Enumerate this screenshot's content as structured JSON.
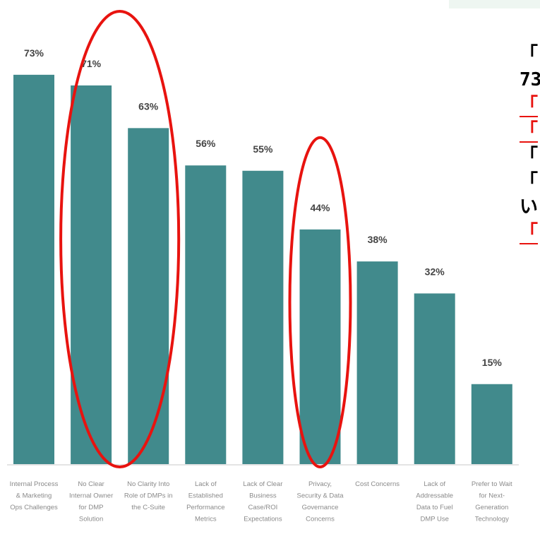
{
  "chart_data": {
    "type": "bar",
    "categories": [
      [
        "Internal Process",
        "& Marketing",
        "Ops Challenges"
      ],
      [
        "No Clear",
        "Internal Owner",
        "for DMP",
        "Solution"
      ],
      [
        "No Clarity Into",
        "Role of DMPs in",
        "the C-Suite"
      ],
      [
        "Lack of",
        "Established",
        "Performance",
        "Metrics"
      ],
      [
        "Lack of Clear",
        "Business",
        "Case/ROI",
        "Expectations"
      ],
      [
        "Privacy,",
        "Security & Data",
        "Governance",
        "Concerns"
      ],
      [
        "Cost Concerns"
      ],
      [
        "Lack of",
        "Addressable",
        "Data to Fuel",
        "DMP Use"
      ],
      [
        "Prefer to Wait",
        "for Next-",
        "Generation",
        "Technology"
      ]
    ],
    "values": [
      73,
      71,
      63,
      56,
      55,
      44,
      38,
      32,
      15
    ],
    "value_labels": [
      "73%",
      "71%",
      "63%",
      "56%",
      "55%",
      "44%",
      "38%",
      "32%",
      "15%"
    ],
    "ylim": [
      0,
      80
    ],
    "bar_color": "#418a8c",
    "grid": false,
    "highlight_color": "#e8130f",
    "highlighted_groups": [
      [
        1,
        2
      ],
      [
        5
      ]
    ]
  },
  "side_text": {
    "lines": [
      {
        "text": "「",
        "color": "#000000",
        "underline": false
      },
      {
        "text": "73",
        "color": "#000000",
        "underline": false
      },
      {
        "text": "「",
        "color": "#e8130f",
        "underline": true
      },
      {
        "text": "「",
        "color": "#e8130f",
        "underline": true
      },
      {
        "text": "「",
        "color": "#000000",
        "underline": false
      },
      {
        "text": "「",
        "color": "#000000",
        "underline": false
      },
      {
        "text": "い",
        "color": "#000000",
        "underline": false
      },
      {
        "text": "「",
        "color": "#e8130f",
        "underline": true
      }
    ]
  },
  "colors": {
    "top_strip": "#eef6f1",
    "axis_line": "#c8c8c8"
  }
}
